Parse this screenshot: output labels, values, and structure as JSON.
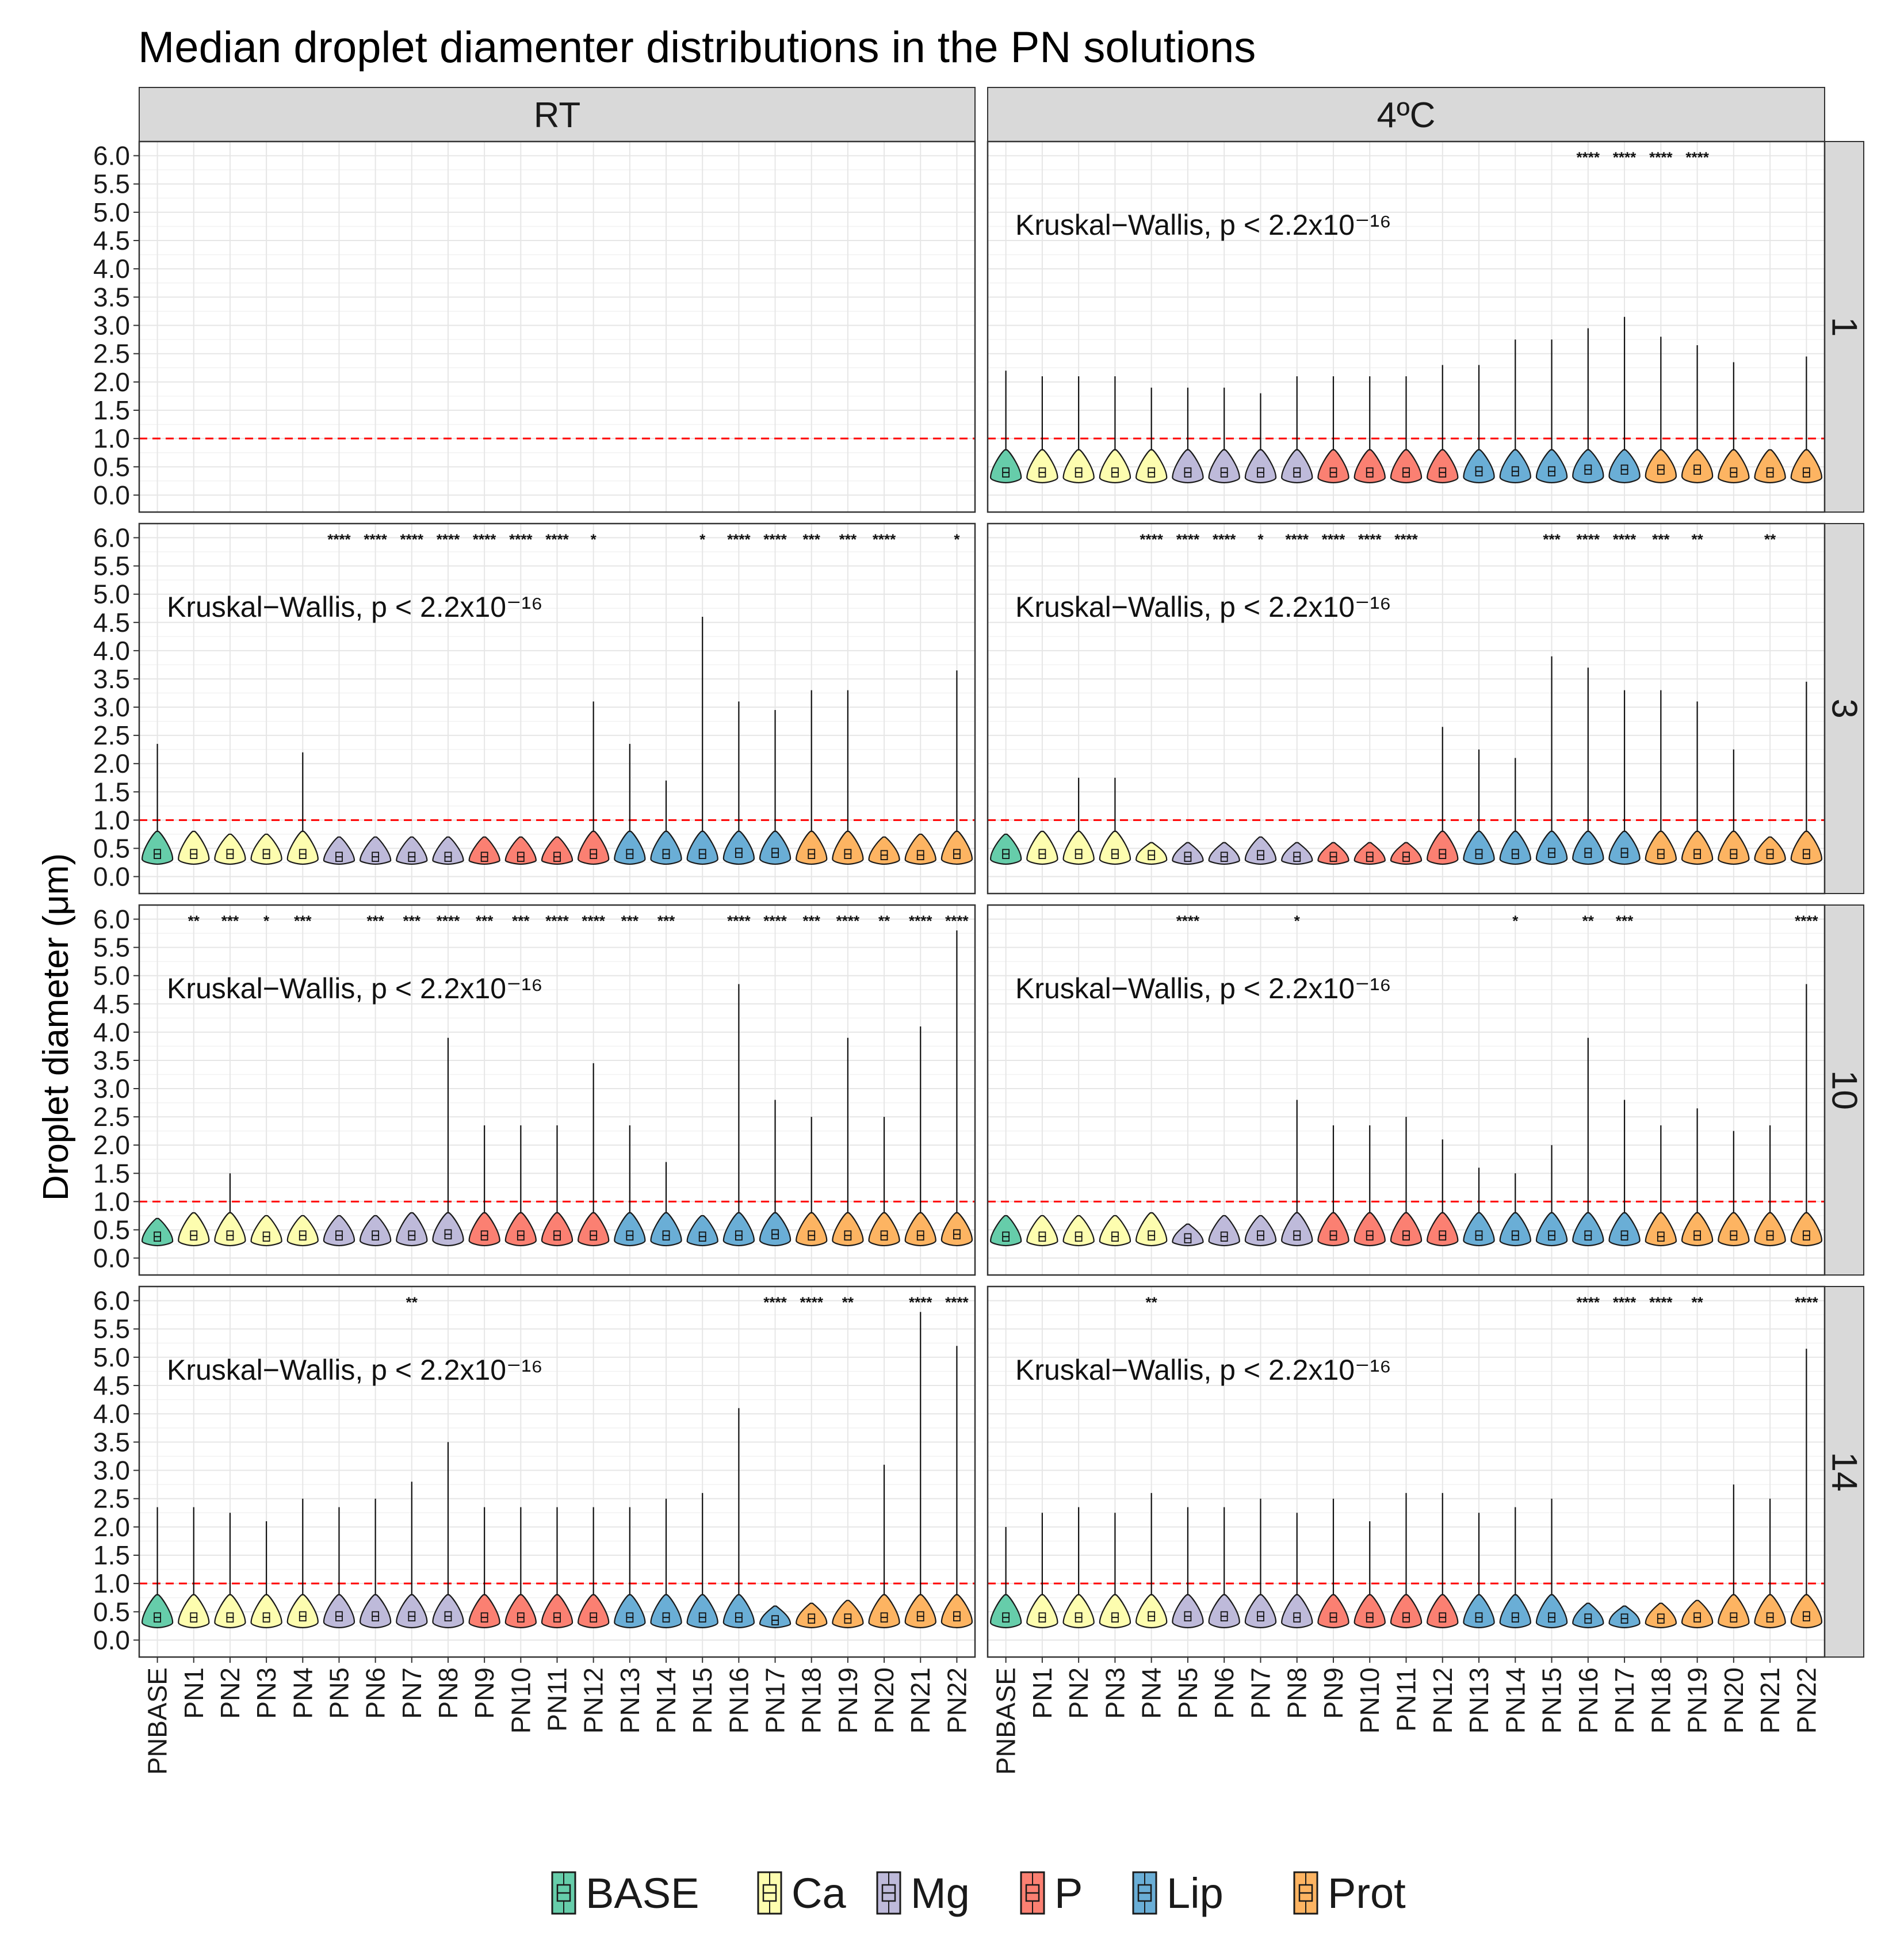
{
  "chart_data": {
    "type": "violin",
    "title": "Median droplet diamenter distributions in the PN solutions",
    "ylabel": "Droplet diameter (μm)",
    "xlabel": "",
    "ylim": [
      -0.3,
      6.25
    ],
    "yticks": [
      "0.0",
      "0.5",
      "1.0",
      "1.5",
      "2.0",
      "2.5",
      "3.0",
      "3.5",
      "4.0",
      "4.5",
      "5.0",
      "5.5",
      "6.0"
    ],
    "reference_line": {
      "y": 1.0,
      "color": "#ff0000",
      "style": "dashed"
    },
    "column_facets": [
      "RT",
      "4ºC"
    ],
    "row_facets": [
      "1",
      "3",
      "10",
      "14"
    ],
    "categories": [
      "PNBASE",
      "PN1",
      "PN2",
      "PN3",
      "PN4",
      "PN5",
      "PN6",
      "PN7",
      "PN8",
      "PN9",
      "PN10",
      "PN11",
      "PN12",
      "PN13",
      "PN14",
      "PN15",
      "PN16",
      "PN17",
      "PN18",
      "PN19",
      "PN20",
      "PN21",
      "PN22"
    ],
    "category_groups": [
      "BASE",
      "Ca",
      "Ca",
      "Ca",
      "Ca",
      "Mg",
      "Mg",
      "Mg",
      "Mg",
      "P",
      "P",
      "P",
      "P",
      "Lip",
      "Lip",
      "Lip",
      "Lip",
      "Lip",
      "Prot",
      "Prot",
      "Prot",
      "Prot",
      "Prot"
    ],
    "legend": {
      "position": "bottom",
      "entries": [
        {
          "name": "BASE",
          "color": "#66cdaa"
        },
        {
          "name": "Ca",
          "color": "#fdfdaf"
        },
        {
          "name": "Mg",
          "color": "#bebada"
        },
        {
          "name": "P",
          "color": "#fb8072"
        },
        {
          "name": "Lip",
          "color": "#6aaed6"
        },
        {
          "name": "Prot",
          "color": "#fdb462"
        }
      ]
    },
    "panels": [
      {
        "row": "1",
        "col": "RT",
        "annotation": "",
        "maxes": [],
        "medians": [],
        "sig": []
      },
      {
        "row": "1",
        "col": "4ºC",
        "annotation": "Kruskal−Wallis, p < 2.2x10⁻¹⁶",
        "maxes": [
          2.2,
          2.1,
          2.1,
          2.1,
          1.9,
          1.9,
          1.9,
          1.8,
          2.1,
          2.1,
          2.1,
          2.1,
          2.3,
          2.3,
          2.75,
          2.75,
          2.95,
          3.15,
          2.8,
          2.65,
          2.35,
          0.8,
          2.45
        ],
        "medians": [
          0.4,
          0.4,
          0.4,
          0.4,
          0.4,
          0.4,
          0.4,
          0.4,
          0.4,
          0.4,
          0.4,
          0.4,
          0.4,
          0.42,
          0.42,
          0.42,
          0.45,
          0.45,
          0.45,
          0.45,
          0.4,
          0.4,
          0.4
        ],
        "sig": [
          "",
          "",
          "",
          "",
          "",
          "",
          "",
          "",
          "",
          "",
          "",
          "",
          "",
          "",
          "",
          "",
          "****",
          "****",
          "****",
          "****",
          "",
          "",
          ""
        ]
      },
      {
        "row": "3",
        "col": "RT",
        "annotation": "Kruskal−Wallis, p < 2.2x10⁻¹⁶",
        "maxes": [
          2.35,
          0.8,
          0.75,
          0.75,
          2.2,
          0.7,
          0.7,
          0.7,
          0.7,
          0.7,
          0.7,
          0.7,
          3.1,
          2.35,
          1.7,
          4.6,
          3.1,
          2.95,
          3.3,
          3.3,
          0.7,
          0.75,
          3.65
        ],
        "medians": [
          0.4,
          0.4,
          0.4,
          0.4,
          0.4,
          0.35,
          0.35,
          0.35,
          0.35,
          0.35,
          0.35,
          0.35,
          0.4,
          0.4,
          0.4,
          0.4,
          0.42,
          0.42,
          0.4,
          0.4,
          0.38,
          0.38,
          0.4
        ],
        "sig": [
          "",
          "",
          "",
          "",
          "",
          "****",
          "****",
          "****",
          "****",
          "****",
          "****",
          "****",
          "*",
          "",
          "",
          "*",
          "****",
          "****",
          "***",
          "***",
          "****",
          "",
          "*"
        ]
      },
      {
        "row": "3",
        "col": "4ºC",
        "annotation": "Kruskal−Wallis, p < 2.2x10⁻¹⁶",
        "maxes": [
          0.75,
          0.8,
          1.75,
          1.75,
          0.6,
          0.6,
          0.6,
          0.7,
          0.6,
          0.6,
          0.6,
          0.6,
          2.65,
          2.25,
          2.1,
          3.9,
          3.7,
          3.3,
          3.3,
          3.1,
          2.25,
          0.7,
          3.45
        ],
        "medians": [
          0.4,
          0.4,
          0.4,
          0.4,
          0.38,
          0.35,
          0.35,
          0.38,
          0.35,
          0.35,
          0.35,
          0.35,
          0.4,
          0.4,
          0.4,
          0.42,
          0.42,
          0.42,
          0.4,
          0.4,
          0.4,
          0.4,
          0.4
        ],
        "sig": [
          "",
          "",
          "",
          "",
          "****",
          "****",
          "****",
          "*",
          "****",
          "****",
          "****",
          "****",
          "",
          "",
          "",
          "***",
          "****",
          "****",
          "***",
          "**",
          "",
          "**",
          ""
        ]
      },
      {
        "row": "10",
        "col": "RT",
        "annotation": "Kruskal−Wallis, p < 2.2x10⁻¹⁶",
        "maxes": [
          0.7,
          0.8,
          1.5,
          0.75,
          0.75,
          0.75,
          0.75,
          0.8,
          3.9,
          2.35,
          2.35,
          2.35,
          3.45,
          2.35,
          1.7,
          0.75,
          4.85,
          2.8,
          2.5,
          3.9,
          2.5,
          4.1,
          5.8
        ],
        "medians": [
          0.38,
          0.4,
          0.4,
          0.38,
          0.4,
          0.4,
          0.4,
          0.4,
          0.42,
          0.4,
          0.4,
          0.4,
          0.4,
          0.4,
          0.4,
          0.38,
          0.4,
          0.42,
          0.4,
          0.4,
          0.4,
          0.4,
          0.42
        ],
        "sig": [
          "",
          "**",
          "***",
          "*",
          "***",
          "",
          "***",
          "***",
          "****",
          "***",
          "***",
          "****",
          "****",
          "***",
          "***",
          "",
          "****",
          "****",
          "***",
          "****",
          "**",
          "****",
          "****"
        ]
      },
      {
        "row": "10",
        "col": "4ºC",
        "annotation": "Kruskal−Wallis, p < 2.2x10⁻¹⁶",
        "maxes": [
          0.75,
          0.75,
          0.75,
          0.75,
          0.8,
          0.6,
          0.75,
          0.75,
          2.8,
          2.35,
          2.35,
          2.5,
          2.1,
          1.6,
          1.5,
          2.0,
          3.9,
          2.8,
          2.35,
          2.65,
          2.25,
          2.35,
          4.85
        ],
        "medians": [
          0.38,
          0.38,
          0.38,
          0.38,
          0.4,
          0.35,
          0.38,
          0.4,
          0.4,
          0.4,
          0.4,
          0.4,
          0.4,
          0.4,
          0.4,
          0.4,
          0.4,
          0.4,
          0.38,
          0.4,
          0.4,
          0.4,
          0.4
        ],
        "sig": [
          "",
          "",
          "",
          "",
          "",
          "****",
          "",
          "",
          "*",
          "",
          "",
          "",
          "",
          "",
          "*",
          "",
          "**",
          "***",
          "",
          "",
          "",
          "",
          "****"
        ]
      },
      {
        "row": "14",
        "col": "RT",
        "annotation": "Kruskal−Wallis, p < 2.2x10⁻¹⁶",
        "maxes": [
          2.35,
          2.35,
          2.25,
          2.1,
          2.5,
          2.35,
          2.5,
          2.8,
          3.5,
          2.35,
          2.35,
          2.35,
          2.35,
          2.35,
          2.5,
          2.6,
          4.1,
          0.6,
          0.65,
          0.7,
          3.1,
          5.8,
          5.2
        ],
        "medians": [
          0.4,
          0.4,
          0.4,
          0.4,
          0.42,
          0.42,
          0.42,
          0.42,
          0.42,
          0.4,
          0.4,
          0.4,
          0.4,
          0.4,
          0.4,
          0.4,
          0.4,
          0.35,
          0.38,
          0.38,
          0.4,
          0.42,
          0.42
        ],
        "sig": [
          "",
          "",
          "",
          "",
          "",
          "",
          "",
          "**",
          "",
          "",
          "",
          "",
          "",
          "",
          "",
          "",
          "",
          "****",
          "****",
          "**",
          "",
          "****",
          "****"
        ]
      },
      {
        "row": "14",
        "col": "4ºC",
        "annotation": "Kruskal−Wallis, p < 2.2x10⁻¹⁶",
        "maxes": [
          2.0,
          2.25,
          2.35,
          2.25,
          2.6,
          2.35,
          2.35,
          2.5,
          2.25,
          2.5,
          2.1,
          2.6,
          2.6,
          2.25,
          2.35,
          2.5,
          0.65,
          0.6,
          0.65,
          0.7,
          2.75,
          2.5,
          5.15
        ],
        "medians": [
          0.4,
          0.4,
          0.4,
          0.4,
          0.42,
          0.42,
          0.42,
          0.42,
          0.4,
          0.4,
          0.4,
          0.4,
          0.4,
          0.4,
          0.4,
          0.4,
          0.38,
          0.38,
          0.38,
          0.4,
          0.4,
          0.4,
          0.42
        ],
        "sig": [
          "",
          "",
          "",
          "",
          "**",
          "",
          "",
          "",
          "",
          "",
          "",
          "",
          "",
          "",
          "",
          "",
          "****",
          "****",
          "****",
          "**",
          "",
          "",
          "****"
        ]
      }
    ]
  }
}
